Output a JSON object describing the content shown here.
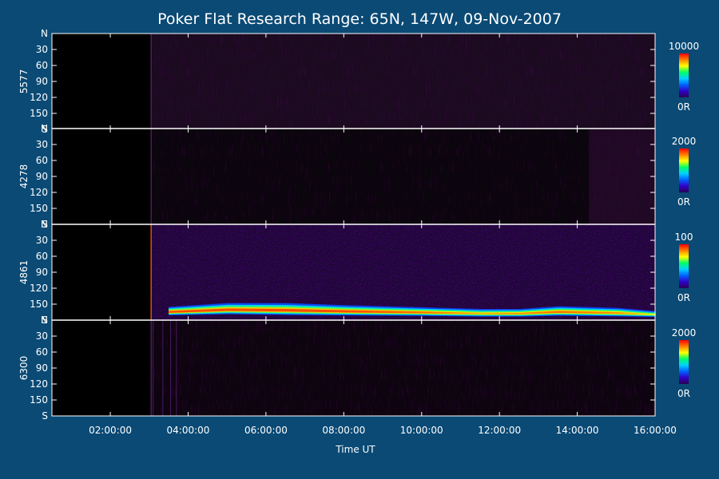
{
  "chart_data": {
    "type": "heatmap",
    "title": "Poker Flat Research Range: 65N, 147W, 09-Nov-2007",
    "xlabel": "Time UT",
    "x_ticks": [
      "02:00:00",
      "04:00:00",
      "06:00:00",
      "08:00:00",
      "10:00:00",
      "12:00:00",
      "14:00:00",
      "16:00:00"
    ],
    "xlim_hours": [
      0.5,
      16.0
    ],
    "y_ticks": [
      "N",
      "30",
      "60",
      "90",
      "120",
      "150",
      "S"
    ],
    "ylim": [
      0,
      180
    ],
    "colorscale": [
      "#2a0052",
      "#3000c8",
      "#0060ff",
      "#00d0ff",
      "#00ff66",
      "#ffff00",
      "#ff8000",
      "#ff0000"
    ],
    "panels": [
      {
        "label": "5577",
        "cbar_max": "10000",
        "cbar_min": "0R",
        "background": "#1b0a20",
        "notes": "faint diffuse background after ~03:05"
      },
      {
        "label": "4278",
        "cbar_max": "2000",
        "cbar_min": "0R",
        "background": "#0b050d",
        "notes": "very faint, slightly brighter near 14:20–16:00"
      },
      {
        "label": "4861",
        "cbar_max": "100",
        "cbar_min": "0R",
        "background": "#20063a",
        "notes": "speckled emission after ~03:05; bright band near 160–170 (S) across 03:30–16:00",
        "arc": [
          {
            "t": 3.5,
            "center": 165,
            "width": 10,
            "peak": 1.0
          },
          {
            "t": 5.0,
            "center": 161,
            "width": 13,
            "peak": 1.0
          },
          {
            "t": 6.5,
            "center": 162,
            "width": 14,
            "peak": 1.0
          },
          {
            "t": 8.0,
            "center": 164,
            "width": 12,
            "peak": 1.0
          },
          {
            "t": 10.0,
            "center": 166,
            "width": 10,
            "peak": 0.95
          },
          {
            "t": 11.5,
            "center": 168,
            "width": 9,
            "peak": 0.85
          },
          {
            "t": 12.5,
            "center": 168,
            "width": 9,
            "peak": 0.9
          },
          {
            "t": 13.5,
            "center": 165,
            "width": 11,
            "peak": 0.95
          },
          {
            "t": 15.0,
            "center": 167,
            "width": 10,
            "peak": 0.9
          },
          {
            "t": 16.0,
            "center": 170,
            "width": 7,
            "peak": 0.75
          }
        ]
      },
      {
        "label": "6300",
        "cbar_max": "2000",
        "cbar_min": "0R",
        "background": "#0e0410",
        "notes": "faint, streaks near 03:05–03:40"
      }
    ],
    "onset_hour": 3.05
  }
}
